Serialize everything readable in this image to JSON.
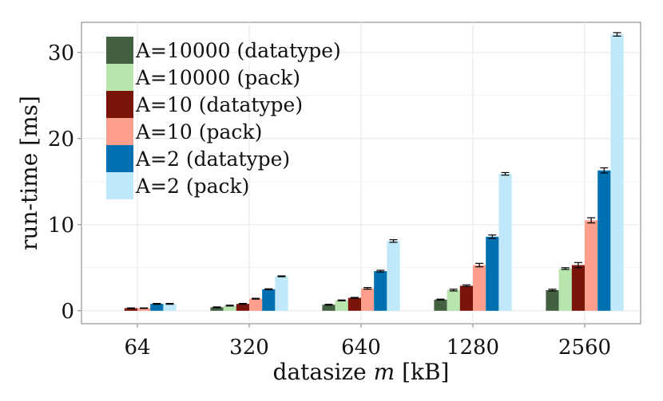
{
  "chart_data": {
    "type": "bar",
    "title": "",
    "xlabel": "datasize m [kB]",
    "xlabel_prefix": "datasize ",
    "xlabel_var": "m",
    "xlabel_suffix": " [kB]",
    "ylabel": "run-time [ms]",
    "ylim": [
      -1.5,
      33.5
    ],
    "yticks": [
      0,
      10,
      20,
      30
    ],
    "grid": true,
    "legend_position": "top-left",
    "categories": [
      "64",
      "320",
      "640",
      "1280",
      "2560"
    ],
    "series": [
      {
        "name": "A=10000 (datatype)",
        "color": "#436040",
        "values": [
          null,
          0.4,
          0.7,
          1.3,
          2.4
        ],
        "errors": [
          null,
          0.05,
          0.05,
          0.05,
          0.1
        ]
      },
      {
        "name": "A=10000 (pack)",
        "color": "#b8e4ad",
        "values": [
          null,
          0.6,
          1.2,
          2.4,
          4.9
        ],
        "errors": [
          null,
          0.05,
          0.05,
          0.1,
          0.1
        ]
      },
      {
        "name": "A=10 (datatype)",
        "color": "#7a1408",
        "values": [
          0.3,
          0.8,
          1.5,
          2.9,
          5.3
        ],
        "errors": [
          0.03,
          0.05,
          0.05,
          0.1,
          0.3
        ]
      },
      {
        "name": "A=10 (pack)",
        "color": "#fe9e8c",
        "values": [
          0.3,
          1.4,
          2.6,
          5.3,
          10.5
        ],
        "errors": [
          0.03,
          0.05,
          0.1,
          0.2,
          0.3
        ]
      },
      {
        "name": "A=2 (datatype)",
        "color": "#0070b0",
        "values": [
          0.8,
          2.5,
          4.6,
          8.6,
          16.3
        ],
        "errors": [
          0.05,
          0.05,
          0.1,
          0.2,
          0.3
        ]
      },
      {
        "name": "A=2 (pack)",
        "color": "#bfe9fb",
        "values": [
          0.8,
          4.0,
          8.1,
          15.9,
          32.1
        ],
        "errors": [
          0.05,
          0.05,
          0.15,
          0.15,
          0.2
        ]
      }
    ]
  }
}
